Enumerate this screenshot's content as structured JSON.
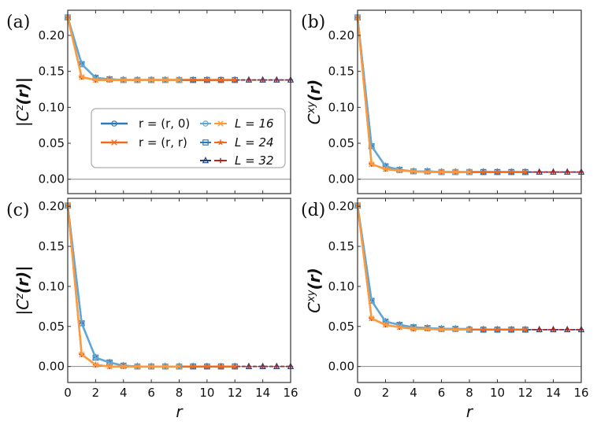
{
  "colors": {
    "r0_L16": "#5fa8d8",
    "r0_L24": "#2b7bba",
    "r0_L32": "#1f3f7f",
    "rr_L16": "#ff9a3c",
    "rr_L24": "#f26a1b",
    "rr_L32": "#b2261e",
    "zero_line": "#888888",
    "frame": "#333333"
  },
  "legend": {
    "entries": [
      {
        "label": "r = (r, 0)",
        "marker": "circle",
        "series": "r0"
      },
      {
        "label": "r = (r, r)",
        "marker": "x",
        "series": "rr"
      }
    ],
    "sizes": [
      {
        "label": "L = 16",
        "markers": [
          "circle",
          "x"
        ]
      },
      {
        "label": "L = 24",
        "markers": [
          "square",
          "star"
        ]
      },
      {
        "label": "L = 32",
        "markers": [
          "triangle",
          "plus"
        ]
      }
    ],
    "placement": "center-right of panel (a)"
  },
  "chart_data": [
    {
      "panel": "(a)",
      "type": "line",
      "ylabel": "|C^z(r)|",
      "ylabel_parts": {
        "prefix": "|C",
        "sup": "z",
        "suffix": "(r)|"
      },
      "xlabel": "",
      "xlim": [
        0,
        16
      ],
      "ylim": [
        -0.02,
        0.235
      ],
      "xticks": [
        0,
        2,
        4,
        6,
        8,
        10,
        12,
        14,
        16
      ],
      "yticks": [
        "0.00",
        "0.05",
        "0.10",
        "0.15",
        "0.20"
      ],
      "show_xtick_labels": false,
      "series": [
        {
          "name": "r=(r,0) L=16",
          "key": "r0_L16",
          "marker": "circle",
          "x": [
            0,
            1,
            2,
            3,
            4,
            5,
            6,
            7,
            8
          ],
          "values": [
            0.225,
            0.16,
            0.141,
            0.139,
            0.138,
            0.138,
            0.138,
            0.138,
            0.138
          ]
        },
        {
          "name": "r=(r,0) L=24",
          "key": "r0_L24",
          "marker": "square",
          "x": [
            0,
            1,
            2,
            3,
            4,
            5,
            6,
            7,
            8,
            9,
            10,
            11,
            12
          ],
          "values": [
            0.225,
            0.16,
            0.141,
            0.139,
            0.138,
            0.138,
            0.138,
            0.138,
            0.138,
            0.138,
            0.138,
            0.138,
            0.138
          ]
        },
        {
          "name": "r=(r,0) L=32",
          "key": "r0_L32",
          "marker": "triangle",
          "x": [
            0,
            1,
            2,
            3,
            4,
            5,
            6,
            7,
            8,
            9,
            10,
            11,
            12,
            13,
            14,
            15,
            16
          ],
          "values": [
            0.225,
            0.16,
            0.141,
            0.139,
            0.138,
            0.138,
            0.138,
            0.138,
            0.138,
            0.138,
            0.138,
            0.138,
            0.138,
            0.138,
            0.138,
            0.138,
            0.138
          ]
        },
        {
          "name": "r=(r,r) L=16",
          "key": "rr_L16",
          "marker": "x",
          "x": [
            0,
            1,
            2,
            3,
            4,
            5,
            6,
            7,
            8
          ],
          "values": [
            0.225,
            0.142,
            0.138,
            0.138,
            0.138,
            0.138,
            0.138,
            0.138,
            0.138
          ]
        },
        {
          "name": "r=(r,r) L=24",
          "key": "rr_L24",
          "marker": "star",
          "x": [
            0,
            1,
            2,
            3,
            4,
            5,
            6,
            7,
            8,
            9,
            10,
            11,
            12
          ],
          "values": [
            0.225,
            0.142,
            0.138,
            0.138,
            0.138,
            0.138,
            0.138,
            0.138,
            0.138,
            0.138,
            0.138,
            0.138,
            0.138
          ]
        },
        {
          "name": "r=(r,r) L=32",
          "key": "rr_L32",
          "marker": "plus",
          "x": [
            0,
            1,
            2,
            3,
            4,
            5,
            6,
            7,
            8,
            9,
            10,
            11,
            12,
            13,
            14,
            15,
            16
          ],
          "values": [
            0.225,
            0.142,
            0.138,
            0.138,
            0.138,
            0.138,
            0.138,
            0.138,
            0.138,
            0.138,
            0.138,
            0.138,
            0.138,
            0.138,
            0.138,
            0.138,
            0.138
          ]
        }
      ]
    },
    {
      "panel": "(b)",
      "type": "line",
      "ylabel": "C^xy(r)",
      "ylabel_parts": {
        "prefix": "C",
        "sup": "xy",
        "suffix": "(r)"
      },
      "xlabel": "",
      "xlim": [
        0,
        16
      ],
      "ylim": [
        -0.02,
        0.235
      ],
      "xticks": [
        0,
        2,
        4,
        6,
        8,
        10,
        12,
        14,
        16
      ],
      "yticks": [
        "0.00",
        "0.05",
        "0.10",
        "0.15",
        "0.20"
      ],
      "show_xtick_labels": false,
      "series": [
        {
          "name": "r=(r,0) L=16",
          "key": "r0_L16",
          "marker": "circle",
          "x": [
            0,
            1,
            2,
            3,
            4,
            5,
            6,
            7,
            8
          ],
          "values": [
            0.225,
            0.046,
            0.018,
            0.013,
            0.011,
            0.011,
            0.01,
            0.01,
            0.01
          ]
        },
        {
          "name": "r=(r,0) L=24",
          "key": "r0_L24",
          "marker": "square",
          "x": [
            0,
            1,
            2,
            3,
            4,
            5,
            6,
            7,
            8,
            9,
            10,
            11,
            12
          ],
          "values": [
            0.225,
            0.046,
            0.018,
            0.013,
            0.011,
            0.011,
            0.01,
            0.01,
            0.01,
            0.01,
            0.01,
            0.01,
            0.01
          ]
        },
        {
          "name": "r=(r,0) L=32",
          "key": "r0_L32",
          "marker": "triangle",
          "x": [
            0,
            1,
            2,
            3,
            4,
            5,
            6,
            7,
            8,
            9,
            10,
            11,
            12,
            13,
            14,
            15,
            16
          ],
          "values": [
            0.225,
            0.046,
            0.018,
            0.013,
            0.011,
            0.011,
            0.01,
            0.01,
            0.01,
            0.01,
            0.01,
            0.01,
            0.01,
            0.01,
            0.01,
            0.01,
            0.01
          ]
        },
        {
          "name": "r=(r,r) L=16",
          "key": "rr_L16",
          "marker": "x",
          "x": [
            0,
            1,
            2,
            3,
            4,
            5,
            6,
            7,
            8
          ],
          "values": [
            0.225,
            0.021,
            0.014,
            0.012,
            0.011,
            0.01,
            0.01,
            0.01,
            0.01
          ]
        },
        {
          "name": "r=(r,r) L=24",
          "key": "rr_L24",
          "marker": "star",
          "x": [
            0,
            1,
            2,
            3,
            4,
            5,
            6,
            7,
            8,
            9,
            10,
            11,
            12
          ],
          "values": [
            0.225,
            0.021,
            0.014,
            0.012,
            0.011,
            0.01,
            0.01,
            0.01,
            0.01,
            0.01,
            0.01,
            0.01,
            0.01
          ]
        },
        {
          "name": "r=(r,r) L=32",
          "key": "rr_L32",
          "marker": "plus",
          "x": [
            0,
            1,
            2,
            3,
            4,
            5,
            6,
            7,
            8,
            9,
            10,
            11,
            12,
            13,
            14,
            15,
            16
          ],
          "values": [
            0.225,
            0.021,
            0.014,
            0.012,
            0.011,
            0.01,
            0.01,
            0.01,
            0.01,
            0.01,
            0.01,
            0.01,
            0.01,
            0.01,
            0.01,
            0.01,
            0.01
          ]
        }
      ]
    },
    {
      "panel": "(c)",
      "type": "line",
      "ylabel": "|C^z(r)|",
      "ylabel_parts": {
        "prefix": "|C",
        "sup": "z",
        "suffix": "(r)|"
      },
      "xlabel": "r",
      "xlim": [
        0,
        16
      ],
      "ylim": [
        -0.02,
        0.21
      ],
      "xticks": [
        0,
        2,
        4,
        6,
        8,
        10,
        12,
        14,
        16
      ],
      "yticks": [
        "0.00",
        "0.05",
        "0.10",
        "0.15",
        "0.20"
      ],
      "show_xtick_labels": true,
      "series": [
        {
          "name": "r=(r,0) L=16",
          "key": "r0_L16",
          "marker": "circle",
          "x": [
            0,
            1,
            2,
            3,
            4,
            5,
            6,
            7,
            8
          ],
          "values": [
            0.201,
            0.054,
            0.011,
            0.005,
            0.001,
            0.0,
            0.0,
            0.0,
            0.0
          ]
        },
        {
          "name": "r=(r,0) L=24",
          "key": "r0_L24",
          "marker": "square",
          "x": [
            0,
            1,
            2,
            3,
            4,
            5,
            6,
            7,
            8,
            9,
            10,
            11,
            12
          ],
          "values": [
            0.201,
            0.054,
            0.011,
            0.005,
            0.001,
            0.0,
            0.0,
            0.0,
            0.0,
            0.0,
            0.0,
            0.0,
            0.0
          ]
        },
        {
          "name": "r=(r,0) L=32",
          "key": "r0_L32",
          "marker": "triangle",
          "x": [
            0,
            1,
            2,
            3,
            4,
            5,
            6,
            7,
            8,
            9,
            10,
            11,
            12,
            13,
            14,
            15,
            16
          ],
          "values": [
            0.201,
            0.054,
            0.011,
            0.005,
            0.001,
            0.0,
            0.0,
            0.0,
            0.0,
            0.0,
            0.0,
            0.0,
            0.0,
            0.0,
            0.0,
            0.0,
            0.0
          ]
        },
        {
          "name": "r=(r,r) L=16",
          "key": "rr_L16",
          "marker": "x",
          "x": [
            0,
            1,
            2,
            3,
            4,
            5,
            6,
            7,
            8
          ],
          "values": [
            0.201,
            0.015,
            0.002,
            0.0,
            0.0,
            0.0,
            0.0,
            0.0,
            0.0
          ]
        },
        {
          "name": "r=(r,r) L=24",
          "key": "rr_L24",
          "marker": "star",
          "x": [
            0,
            1,
            2,
            3,
            4,
            5,
            6,
            7,
            8,
            9,
            10,
            11,
            12
          ],
          "values": [
            0.201,
            0.015,
            0.002,
            0.0,
            0.0,
            0.0,
            0.0,
            0.0,
            0.0,
            0.0,
            0.0,
            0.0,
            0.0
          ]
        },
        {
          "name": "r=(r,r) L=32",
          "key": "rr_L32",
          "marker": "plus",
          "x": [
            0,
            1,
            2,
            3,
            4,
            5,
            6,
            7,
            8,
            9,
            10,
            11,
            12,
            13,
            14,
            15,
            16
          ],
          "values": [
            0.201,
            0.015,
            0.002,
            0.0,
            0.0,
            0.0,
            0.0,
            0.0,
            0.0,
            0.0,
            0.0,
            0.0,
            0.0,
            0.0,
            0.0,
            0.0,
            0.0
          ]
        }
      ]
    },
    {
      "panel": "(d)",
      "type": "line",
      "ylabel": "C^xy(r)",
      "ylabel_parts": {
        "prefix": "C",
        "sup": "xy",
        "suffix": "(r)"
      },
      "xlabel": "r",
      "xlim": [
        0,
        16
      ],
      "ylim": [
        -0.02,
        0.21
      ],
      "xticks": [
        0,
        2,
        4,
        6,
        8,
        10,
        12,
        14,
        16
      ],
      "yticks": [
        "0.00",
        "0.05",
        "0.10",
        "0.15",
        "0.20"
      ],
      "show_xtick_labels": true,
      "series": [
        {
          "name": "r=(r,0) L=16",
          "key": "r0_L16",
          "marker": "circle",
          "x": [
            0,
            1,
            2,
            3,
            4,
            5,
            6,
            7,
            8
          ],
          "values": [
            0.201,
            0.082,
            0.056,
            0.052,
            0.049,
            0.048,
            0.047,
            0.047,
            0.047
          ]
        },
        {
          "name": "r=(r,0) L=24",
          "key": "r0_L24",
          "marker": "square",
          "x": [
            0,
            1,
            2,
            3,
            4,
            5,
            6,
            7,
            8,
            9,
            10,
            11,
            12
          ],
          "values": [
            0.201,
            0.082,
            0.056,
            0.052,
            0.049,
            0.048,
            0.047,
            0.047,
            0.046,
            0.046,
            0.046,
            0.046,
            0.046
          ]
        },
        {
          "name": "r=(r,0) L=32",
          "key": "r0_L32",
          "marker": "triangle",
          "x": [
            0,
            1,
            2,
            3,
            4,
            5,
            6,
            7,
            8,
            9,
            10,
            11,
            12,
            13,
            14,
            15,
            16
          ],
          "values": [
            0.201,
            0.082,
            0.056,
            0.052,
            0.049,
            0.048,
            0.047,
            0.047,
            0.046,
            0.046,
            0.046,
            0.046,
            0.046,
            0.046,
            0.046,
            0.046,
            0.046
          ]
        },
        {
          "name": "r=(r,r) L=16",
          "key": "rr_L16",
          "marker": "x",
          "x": [
            0,
            1,
            2,
            3,
            4,
            5,
            6,
            7,
            8
          ],
          "values": [
            0.201,
            0.06,
            0.052,
            0.049,
            0.047,
            0.047,
            0.046,
            0.046,
            0.046
          ]
        },
        {
          "name": "r=(r,r) L=24",
          "key": "rr_L24",
          "marker": "star",
          "x": [
            0,
            1,
            2,
            3,
            4,
            5,
            6,
            7,
            8,
            9,
            10,
            11,
            12
          ],
          "values": [
            0.201,
            0.06,
            0.052,
            0.049,
            0.047,
            0.047,
            0.046,
            0.046,
            0.046,
            0.046,
            0.046,
            0.046,
            0.046
          ]
        },
        {
          "name": "r=(r,r) L=32",
          "key": "rr_L32",
          "marker": "plus",
          "x": [
            0,
            1,
            2,
            3,
            4,
            5,
            6,
            7,
            8,
            9,
            10,
            11,
            12,
            13,
            14,
            15,
            16
          ],
          "values": [
            0.201,
            0.06,
            0.052,
            0.049,
            0.047,
            0.047,
            0.046,
            0.046,
            0.046,
            0.046,
            0.046,
            0.046,
            0.046,
            0.046,
            0.046,
            0.046,
            0.046
          ]
        }
      ]
    }
  ]
}
